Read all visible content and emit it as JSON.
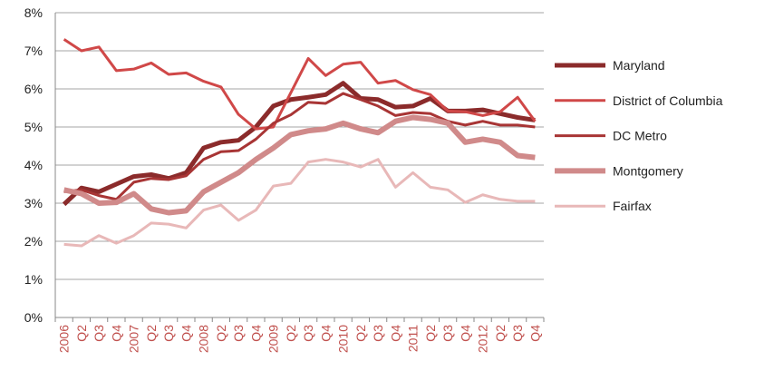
{
  "chart_data": {
    "type": "line",
    "categories": [
      "2006",
      "Q2",
      "Q3",
      "Q4",
      "2007",
      "Q2",
      "Q3",
      "Q4",
      "2008",
      "Q2",
      "Q3",
      "Q4",
      "2009",
      "Q2",
      "Q3",
      "Q4",
      "2010",
      "Q2",
      "Q3",
      "Q4",
      "2011",
      "Q2",
      "Q3",
      "Q4",
      "2012",
      "Q2",
      "Q3",
      "Q4"
    ],
    "series": [
      {
        "name": "Maryland",
        "color": "#8b2b2b",
        "values": [
          2.97,
          3.4,
          3.3,
          3.5,
          3.7,
          3.75,
          3.65,
          3.8,
          4.45,
          4.6,
          4.65,
          5.0,
          5.55,
          5.72,
          5.78,
          5.85,
          6.15,
          5.75,
          5.72,
          5.52,
          5.55,
          5.75,
          5.42,
          5.42,
          5.45,
          5.35,
          5.25,
          5.18
        ]
      },
      {
        "name": "District of Columbia",
        "color": "#d04848",
        "values": [
          7.3,
          7.0,
          7.1,
          6.48,
          6.52,
          6.68,
          6.38,
          6.42,
          6.2,
          6.05,
          5.33,
          4.95,
          5.0,
          5.9,
          6.8,
          6.35,
          6.65,
          6.7,
          6.15,
          6.22,
          5.98,
          5.85,
          5.42,
          5.4,
          5.3,
          5.4,
          5.78,
          5.15
        ]
      },
      {
        "name": "DC Metro",
        "color": "#a83535",
        "values": [
          3.3,
          3.35,
          3.2,
          3.1,
          3.55,
          3.65,
          3.62,
          3.72,
          4.15,
          4.35,
          4.38,
          4.68,
          5.1,
          5.32,
          5.65,
          5.62,
          5.88,
          5.72,
          5.55,
          5.3,
          5.38,
          5.35,
          5.15,
          5.05,
          5.15,
          5.05,
          5.05,
          5.0
        ]
      },
      {
        "name": "Montgomery",
        "color": "#d08a8a",
        "values": [
          3.35,
          3.25,
          3.0,
          3.02,
          3.25,
          2.85,
          2.75,
          2.8,
          3.3,
          3.55,
          3.8,
          4.15,
          4.45,
          4.8,
          4.9,
          4.95,
          5.1,
          4.95,
          4.85,
          5.15,
          5.25,
          5.2,
          5.1,
          4.6,
          4.68,
          4.6,
          4.25,
          4.2
        ]
      },
      {
        "name": "Fairfax",
        "color": "#e8b8b8",
        "values": [
          1.92,
          1.88,
          2.15,
          1.95,
          2.15,
          2.48,
          2.45,
          2.35,
          2.82,
          2.95,
          2.55,
          2.82,
          3.45,
          3.52,
          4.08,
          4.15,
          4.08,
          3.95,
          4.15,
          3.42,
          3.8,
          3.42,
          3.35,
          3.02,
          3.22,
          3.1,
          3.05,
          3.05
        ]
      }
    ],
    "ylim": [
      0,
      8
    ],
    "yticks": [
      {
        "value": 0,
        "label": "0%"
      },
      {
        "value": 1,
        "label": "1%"
      },
      {
        "value": 2,
        "label": "2%"
      },
      {
        "value": 3,
        "label": "3%"
      },
      {
        "value": 4,
        "label": "4%"
      },
      {
        "value": 5,
        "label": "5%"
      },
      {
        "value": 6,
        "label": "6%"
      },
      {
        "value": 7,
        "label": "7%"
      },
      {
        "value": 8,
        "label": "8%"
      }
    ],
    "grid": true,
    "legend": "right",
    "category_label_color": "#c0504d"
  }
}
